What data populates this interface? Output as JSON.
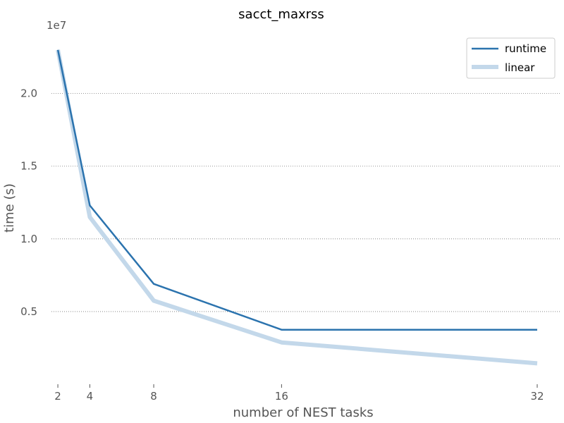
{
  "chart_data": {
    "type": "line",
    "title": "sacct_maxrss",
    "xlabel": "number of NEST tasks",
    "ylabel": "time (s)",
    "y_offset_label": "1e7",
    "x": [
      2,
      4,
      8,
      16,
      32
    ],
    "x_ticks": [
      2,
      4,
      8,
      16,
      32
    ],
    "y_ticks": [
      0.5,
      1.0,
      1.5,
      2.0
    ],
    "y_tick_labels": [
      "0.5",
      "1.0",
      "1.5",
      "2.0"
    ],
    "xlim": [
      1.6,
      33.5
    ],
    "ylim": [
      0.0,
      2.43
    ],
    "grid": "horizontal dotted",
    "legend_position": "top-right",
    "series": [
      {
        "name": "runtime",
        "values": [
          2.3,
          1.23,
          0.69,
          0.375,
          0.375
        ],
        "color": "#2b73ae",
        "style": "thin"
      },
      {
        "name": "linear",
        "values": [
          2.3,
          1.15,
          0.575,
          0.2875,
          0.14375
        ],
        "color": "#c3d8ea",
        "style": "thick"
      }
    ]
  }
}
